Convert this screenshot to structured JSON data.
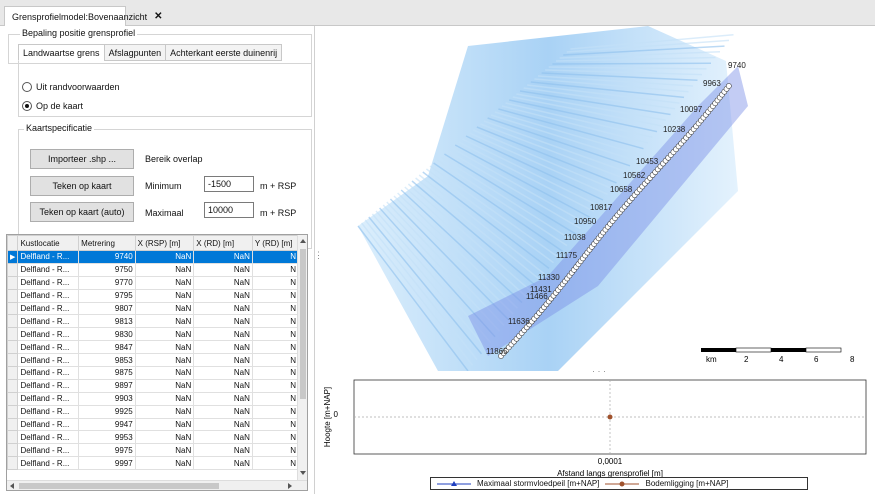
{
  "window": {
    "tab_title": "Grensprofielmodel:Bovenaanzicht",
    "close_glyph": "✕"
  },
  "position_group": {
    "title": "Bepaling positie grensprofiel",
    "tabs": [
      "Landwaartse grens",
      "Afslagpunten",
      "Achterkant eerste duinenrij"
    ],
    "active_tab": 0,
    "radios": [
      {
        "label": "Uit randvoorwaarden",
        "checked": false
      },
      {
        "label": "Op de kaart",
        "checked": true
      }
    ]
  },
  "map_spec": {
    "title": "Kaartspecificatie",
    "import_button": "Importeer .shp ...",
    "draw_button": "Teken op kaart",
    "draw_auto_button": "Teken op kaart (auto)",
    "range_title": "Bereik overlap",
    "min_label": "Minimum",
    "min_value": "-1500",
    "max_label": "Maximaal",
    "max_value": "10000",
    "unit": "m + RSP"
  },
  "grid": {
    "columns": [
      "Kustlocatie",
      "Metrering",
      "X (RSP) [m]",
      "X (RD) [m]",
      "Y (RD) [m]"
    ],
    "rows": [
      [
        "Delfland - R...",
        "9740",
        "NaN",
        "NaN",
        "N"
      ],
      [
        "Delfland - R...",
        "9750",
        "NaN",
        "NaN",
        "N"
      ],
      [
        "Delfland - R...",
        "9770",
        "NaN",
        "NaN",
        "N"
      ],
      [
        "Delfland - R...",
        "9795",
        "NaN",
        "NaN",
        "N"
      ],
      [
        "Delfland - R...",
        "9807",
        "NaN",
        "NaN",
        "N"
      ],
      [
        "Delfland - R...",
        "9813",
        "NaN",
        "NaN",
        "N"
      ],
      [
        "Delfland - R...",
        "9830",
        "NaN",
        "NaN",
        "N"
      ],
      [
        "Delfland - R...",
        "9847",
        "NaN",
        "NaN",
        "N"
      ],
      [
        "Delfland - R...",
        "9853",
        "NaN",
        "NaN",
        "N"
      ],
      [
        "Delfland - R...",
        "9875",
        "NaN",
        "NaN",
        "N"
      ],
      [
        "Delfland - R...",
        "9897",
        "NaN",
        "NaN",
        "N"
      ],
      [
        "Delfland - R...",
        "9903",
        "NaN",
        "NaN",
        "N"
      ],
      [
        "Delfland - R...",
        "9925",
        "NaN",
        "NaN",
        "N"
      ],
      [
        "Delfland - R...",
        "9947",
        "NaN",
        "NaN",
        "N"
      ],
      [
        "Delfland - R...",
        "9953",
        "NaN",
        "NaN",
        "N"
      ],
      [
        "Delfland - R...",
        "9975",
        "NaN",
        "NaN",
        "N"
      ],
      [
        "Delfland - R...",
        "9997",
        "NaN",
        "NaN",
        "N"
      ]
    ]
  },
  "map": {
    "point_labels": [
      "9740",
      "9963",
      "10097",
      "10238",
      "10453",
      "10562",
      "10658",
      "10817",
      "10950",
      "11038",
      "11175",
      "11330",
      "11431",
      "11466",
      "11636",
      "11865"
    ],
    "scale_unit": "km",
    "scale_ticks": [
      "2",
      "4",
      "6",
      "8"
    ]
  },
  "chart_data": {
    "type": "scatter",
    "xlabel": "Afstand langs grensprofiel [m]",
    "ylabel": "Hoogte [m+NAP]",
    "x_tick": "0,0001",
    "y_tick": "0",
    "series": [
      {
        "name": "Maximaal stormvloedpeil [m+NAP]",
        "color": "#1f3fbf",
        "points": []
      },
      {
        "name": "Bodemligging [m+NAP]",
        "color": "#a0522d",
        "points": [
          [
            0.0001,
            0
          ]
        ]
      }
    ]
  }
}
